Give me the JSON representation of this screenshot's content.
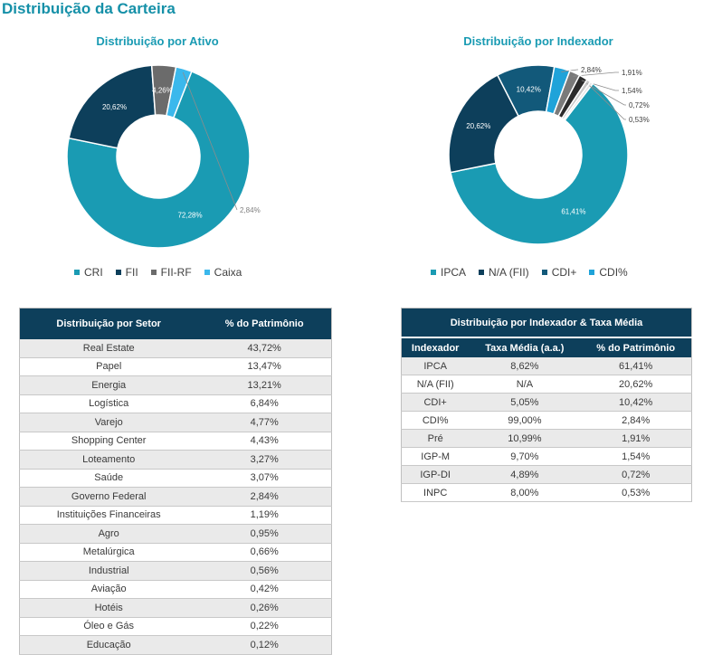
{
  "page_title": "Distribuição da Carteira",
  "chart_data": [
    {
      "type": "pie",
      "title": "Distribuição por Ativo",
      "categories": [
        "CRI",
        "FII",
        "FII-RF",
        "Caixa"
      ],
      "values": [
        72.28,
        20.62,
        4.26,
        2.84
      ],
      "data_labels": [
        "72,28%",
        "20,62%",
        "4,26%",
        "2,84%"
      ],
      "colors": [
        "#1a9bb3",
        "#0d3f5b",
        "#6b6b6b",
        "#3bb8ec"
      ],
      "legend_position": "bottom"
    },
    {
      "type": "pie",
      "title": "Distribuição por Indexador",
      "categories": [
        "IPCA",
        "N/A (FII)",
        "CDI+",
        "CDI%",
        "Pré",
        "IGP-M",
        "IGP-DI",
        "INPC"
      ],
      "values": [
        61.41,
        20.62,
        10.42,
        2.84,
        1.91,
        1.54,
        0.72,
        0.53
      ],
      "data_labels": [
        "61,41%",
        "20,62%",
        "10,42%",
        "2,84%",
        "1,91%",
        "1,54%",
        "0,72%",
        "0,53%"
      ],
      "legend_entries": [
        "IPCA",
        "N/A (FII)",
        "CDI+",
        "CDI%"
      ],
      "colors": [
        "#1a9bb3",
        "#0d3f5b",
        "#12597a",
        "#1fa3d9",
        "#7a7a7a",
        "#2b2b2b",
        "#c8c8c8",
        "#e6e6e6"
      ],
      "legend_position": "bottom"
    }
  ],
  "sector_table": {
    "headers": [
      "Distribuição por Setor",
      "% do Patrimônio"
    ],
    "rows": [
      [
        "Real Estate",
        "43,72%"
      ],
      [
        "Papel",
        "13,47%"
      ],
      [
        "Energia",
        "13,21%"
      ],
      [
        "Logística",
        "6,84%"
      ],
      [
        "Varejo",
        "4,77%"
      ],
      [
        "Shopping Center",
        "4,43%"
      ],
      [
        "Loteamento",
        "3,27%"
      ],
      [
        "Saúde",
        "3,07%"
      ],
      [
        "Governo Federal",
        "2,84%"
      ],
      [
        "Instituições Financeiras",
        "1,19%"
      ],
      [
        "Agro",
        "0,95%"
      ],
      [
        "Metalúrgica",
        "0,66%"
      ],
      [
        "Industrial",
        "0,56%"
      ],
      [
        "Aviação",
        "0,42%"
      ],
      [
        "Hotéis",
        "0,26%"
      ],
      [
        "Óleo e Gás",
        "0,22%"
      ],
      [
        "Educação",
        "0,12%"
      ]
    ]
  },
  "indexer_table": {
    "title": "Distribuição por Indexador & Taxa Média",
    "headers": [
      "Indexador",
      "Taxa Média (a.a.)",
      "% do Patrimônio"
    ],
    "rows": [
      [
        "IPCA",
        "8,62%",
        "61,41%"
      ],
      [
        "N/A (FII)",
        "N/A",
        "20,62%"
      ],
      [
        "CDI+",
        "5,05%",
        "10,42%"
      ],
      [
        "CDI%",
        "99,00%",
        "2,84%"
      ],
      [
        "Pré",
        "10,99%",
        "1,91%"
      ],
      [
        "IGP-M",
        "9,70%",
        "1,54%"
      ],
      [
        "IGP-DI",
        "4,89%",
        "0,72%"
      ],
      [
        "INPC",
        "8,00%",
        "0,53%"
      ]
    ]
  }
}
